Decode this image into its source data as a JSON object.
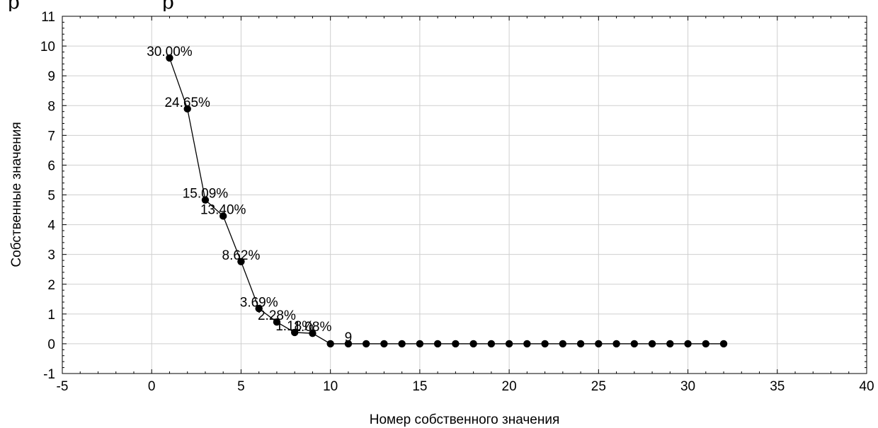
{
  "header_fragment": {
    "left": "р",
    "right": "р"
  },
  "chart_data": {
    "type": "line",
    "xlabel": "Номер собственного значения",
    "ylabel": "Собственные значения",
    "xlim": [
      -5,
      40
    ],
    "ylim": [
      -1,
      11
    ],
    "x_ticks": [
      -5,
      0,
      5,
      10,
      15,
      20,
      25,
      30,
      35,
      40
    ],
    "y_ticks": [
      -1,
      0,
      1,
      2,
      3,
      4,
      5,
      6,
      7,
      8,
      9,
      10,
      11
    ],
    "grid": true,
    "legend": "none",
    "line_color": "#000000",
    "marker": "filled-circle",
    "x": [
      1,
      2,
      3,
      4,
      5,
      6,
      7,
      8,
      9,
      10,
      11,
      12,
      13,
      14,
      15,
      16,
      17,
      18,
      19,
      20,
      21,
      22,
      23,
      24,
      25,
      26,
      27,
      28,
      29,
      30,
      31,
      32
    ],
    "y": [
      9.6,
      7.89,
      4.83,
      4.29,
      2.76,
      1.18,
      0.73,
      0.38,
      0.35,
      0,
      0,
      0,
      0,
      0,
      0,
      0,
      0,
      0,
      0,
      0,
      0,
      0,
      0,
      0,
      0,
      0,
      0,
      0,
      0,
      0,
      0,
      0
    ],
    "annotations": [
      {
        "x": 1,
        "text": "30.00%"
      },
      {
        "x": 2,
        "text": "24.65%"
      },
      {
        "x": 3,
        "text": "15.09%"
      },
      {
        "x": 4,
        "text": "13.40%"
      },
      {
        "x": 5,
        "text": "8.62%"
      },
      {
        "x": 6,
        "text": "3.69%"
      },
      {
        "x": 7,
        "text": "2.28%"
      },
      {
        "x": 8,
        "text": "1.18%"
      },
      {
        "x": 9,
        "text": "1.08%"
      },
      {
        "x": 11,
        "text": "9"
      }
    ]
  }
}
